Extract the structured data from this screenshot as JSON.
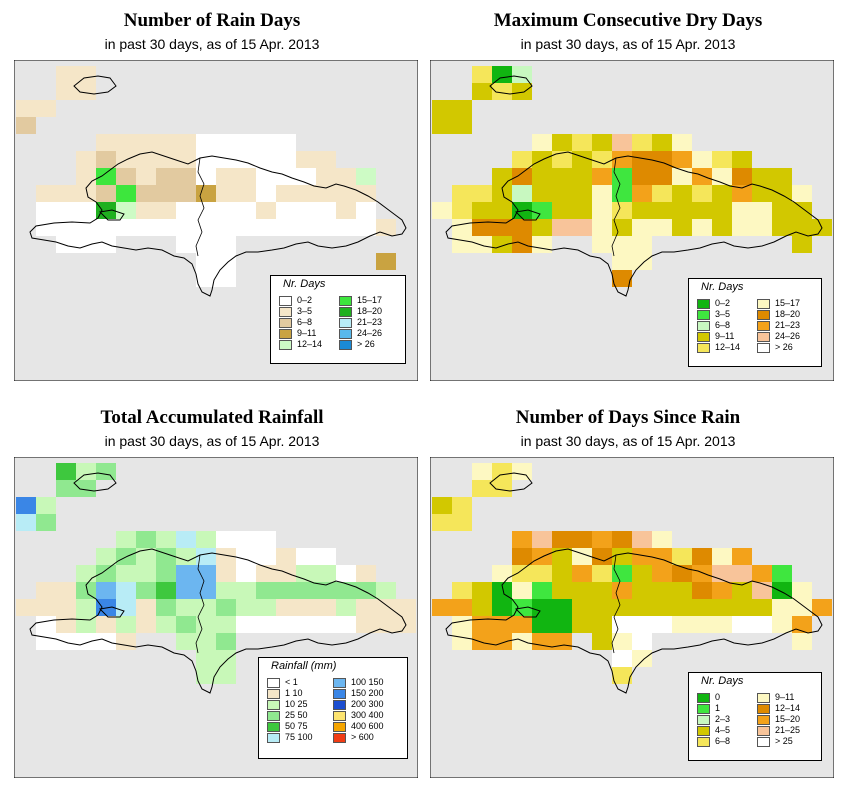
{
  "panels": [
    {
      "id": "rain_days",
      "title": "Number of Rain Days",
      "subtitle": "in past 30 days, as of  15 Apr. 2013",
      "legend_title": "Nr. Days",
      "legend": [
        {
          "label": "0–2",
          "color": "#ffffff"
        },
        {
          "label": "3–5",
          "color": "#f5e6c8"
        },
        {
          "label": "6–8",
          "color": "#e2caa0"
        },
        {
          "label": "9–11",
          "color": "#c9a341"
        },
        {
          "label": "12–14",
          "color": "#cdfbc5"
        },
        {
          "label": "15–17",
          "color": "#3de63d"
        },
        {
          "label": "18–20",
          "color": "#1fb01f"
        },
        {
          "label": "21–23",
          "color": "#b8ecf6"
        },
        {
          "label": "24–26",
          "color": "#58b9ec"
        },
        {
          "label": "> 26",
          "color": "#1a8ad6"
        }
      ]
    },
    {
      "id": "dry_days",
      "title": "Maximum Consecutive Dry Days",
      "subtitle": "in past 30 days, as of  15 Apr. 2013",
      "legend_title": "Nr. Days",
      "legend": [
        {
          "label": "0–2",
          "color": "#11b511"
        },
        {
          "label": "3–5",
          "color": "#3fe63f"
        },
        {
          "label": "6–8",
          "color": "#c8f8c0"
        },
        {
          "label": "9–11",
          "color": "#d2c800"
        },
        {
          "label": "12–14",
          "color": "#f5e65a"
        },
        {
          "label": "15–17",
          "color": "#fdf8c2"
        },
        {
          "label": "18–20",
          "color": "#de8a00"
        },
        {
          "label": "21–23",
          "color": "#f3a21a"
        },
        {
          "label": "24–26",
          "color": "#f8c49a"
        },
        {
          "label": "> 26",
          "color": "#ffffff"
        }
      ]
    },
    {
      "id": "rainfall",
      "title": "Total Accumulated Rainfall",
      "subtitle": "in past 30 days, as of  15 Apr. 2013",
      "legend_title": "Rainfall (mm)",
      "legend": [
        {
          "label": "< 1",
          "color": "#ffffff"
        },
        {
          "label": "1   10",
          "color": "#f5e6c8"
        },
        {
          "label": "10   25",
          "color": "#c8f8b8"
        },
        {
          "label": "25   50",
          "color": "#90e890"
        },
        {
          "label": "50   75",
          "color": "#3ec83e"
        },
        {
          "label": "75   100",
          "color": "#b8ecf6"
        },
        {
          "label": "100   150",
          "color": "#6cb6f0"
        },
        {
          "label": "150   200",
          "color": "#3a86e6"
        },
        {
          "label": "200   300",
          "color": "#1c4ed0"
        },
        {
          "label": "300   400",
          "color": "#fde470"
        },
        {
          "label": "400   600",
          "color": "#f5a500"
        },
        {
          "label": "> 600",
          "color": "#f03c14"
        }
      ]
    },
    {
      "id": "days_since_rain",
      "title": "Number of Days Since Rain",
      "subtitle": "in past 30 days, as of  15 Apr. 2013",
      "legend_title": "Nr. Days",
      "legend": [
        {
          "label": "0",
          "color": "#11b511"
        },
        {
          "label": "1",
          "color": "#3fe63f"
        },
        {
          "label": "2–3",
          "color": "#c8f8c0"
        },
        {
          "label": "4–5",
          "color": "#d2c800"
        },
        {
          "label": "6–8",
          "color": "#f5e65a"
        },
        {
          "label": "9–11",
          "color": "#fdf8c2"
        },
        {
          "label": "12–14",
          "color": "#de8a00"
        },
        {
          "label": "15–20",
          "color": "#f3a21a"
        },
        {
          "label": "21–25",
          "color": "#f8c49a"
        },
        {
          "label": "> 25",
          "color": "#ffffff"
        }
      ]
    }
  ],
  "colors": {
    "ocean": "#e6e6e6",
    "coastline": "#000000"
  }
}
